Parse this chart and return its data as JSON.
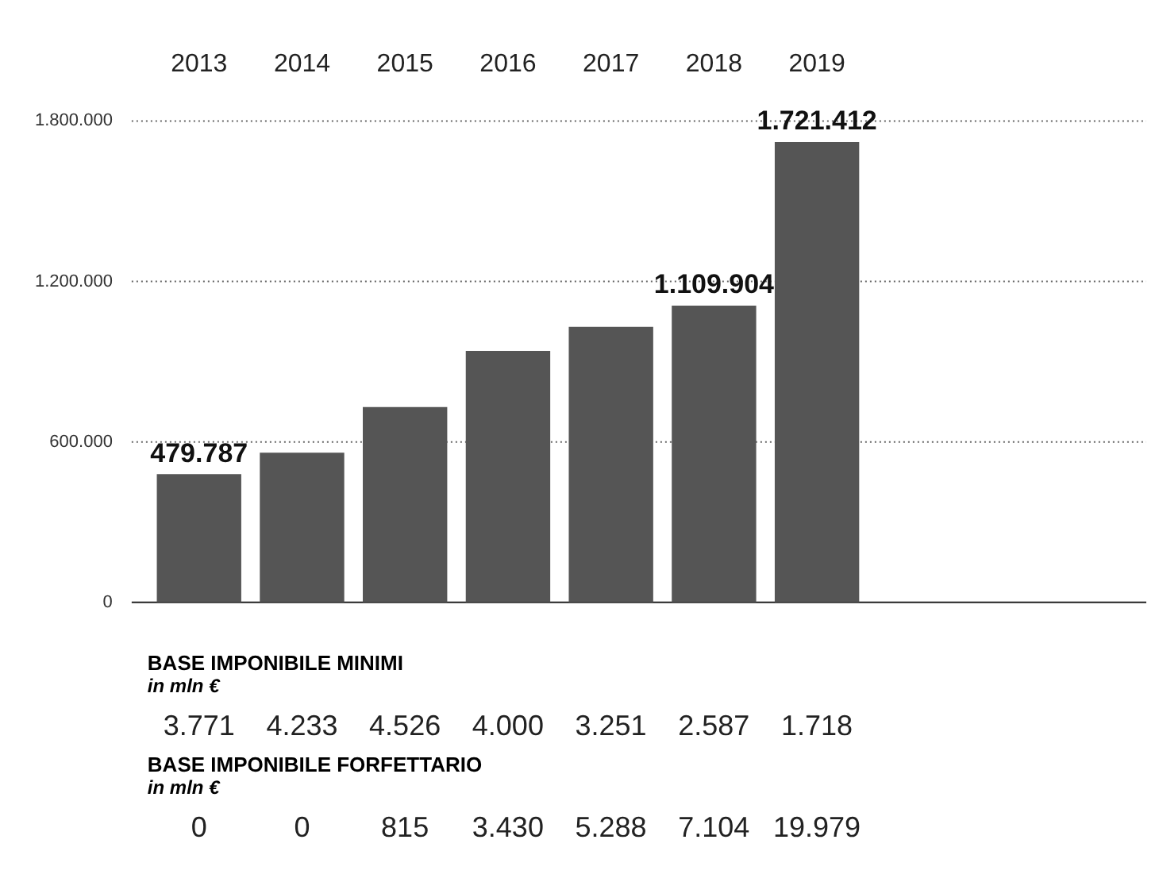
{
  "chart_data": {
    "type": "bar",
    "categories": [
      "2013",
      "2014",
      "2015",
      "2016",
      "2017",
      "2018",
      "2019"
    ],
    "values": [
      479787,
      560000,
      730000,
      940000,
      1030000,
      1109904,
      1721412
    ],
    "value_labels": [
      "479.787",
      null,
      null,
      null,
      null,
      "1.109.904",
      "1.721.412"
    ],
    "color": "#555555",
    "ylim": [
      0,
      1800000
    ],
    "yticks": [
      0,
      {
        "value": 600000,
        "label": "600.000"
      },
      {
        "value": 1200000,
        "label": "1.200.000"
      },
      {
        "value": 1800000,
        "label": "1.800.000"
      }
    ],
    "grid": "y",
    "legend": false,
    "annotations": [
      "BASE IMPONIBILE MINIMI",
      "in mln €",
      "3.771 4.233 4.526 4.000 3.251 2.587 1.718",
      "BASE IMPONIBILE FORFETTARIO",
      "in mln €",
      "0 0 815 3.430 5.288 7.104 19.979"
    ]
  }
}
